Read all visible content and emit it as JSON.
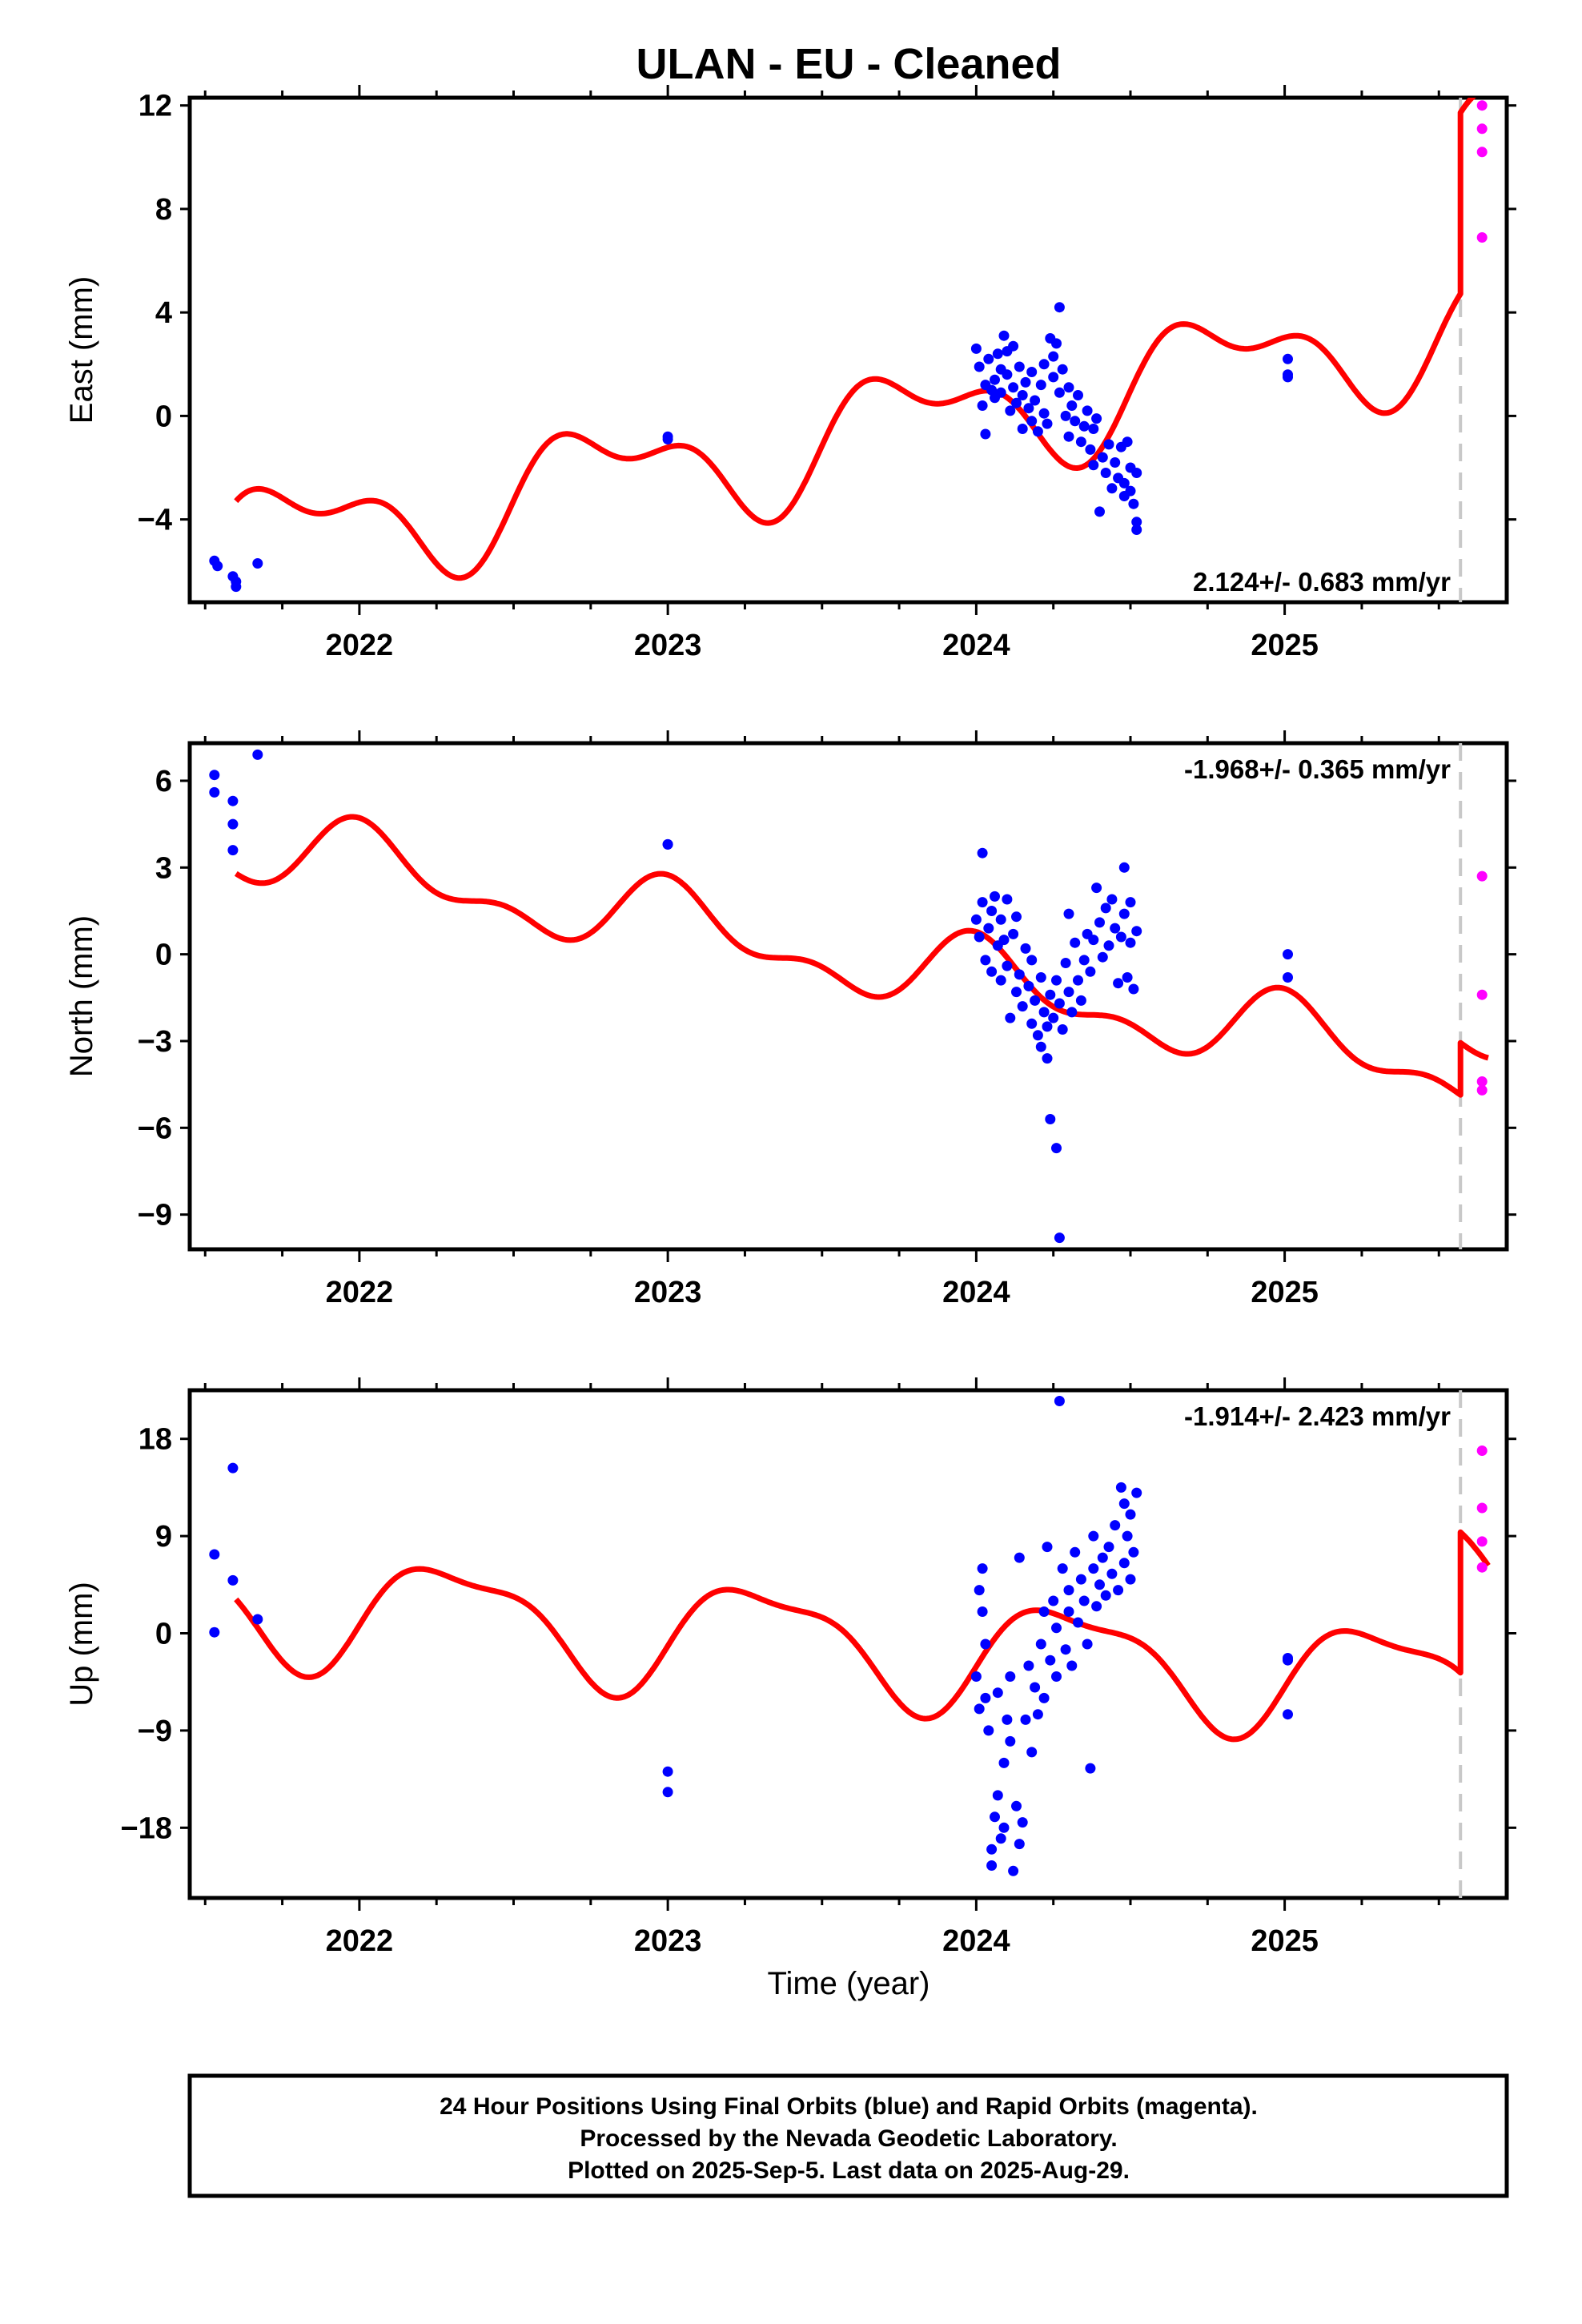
{
  "chart_data": {
    "type": "scatter",
    "title": "ULAN  - EU - Cleaned",
    "xlabel": "Time (year)",
    "x_ticks": [
      2022,
      2023,
      2024,
      2025
    ],
    "x_tick_labels": [
      "2022",
      "2023",
      "2024",
      "2025"
    ],
    "xlim": [
      2021.45,
      2025.72
    ],
    "last_data_marker_x": 2025.57,
    "series_colors": {
      "final_orbits": "#0000ff",
      "rapid_orbits": "#ff00ff",
      "model_fit": "#ff0000",
      "last_data_line": "#c8c8c8"
    },
    "grid": false,
    "panels": [
      {
        "id": "east",
        "ylabel": "East (mm)",
        "ylim": [
          -7.2,
          12.3
        ],
        "y_ticks": [
          12,
          8,
          4,
          0,
          -4
        ],
        "y_tick_labels": [
          "12",
          "8",
          "4",
          "0",
          "−4"
        ],
        "rate_text": "2.124+/- 0.683 mm/yr",
        "rate_position": "bottom-right",
        "model": {
          "trend_offset": -5.2,
          "rate": 2.124,
          "annual_cos": 0.5,
          "annual_sin": -1.8,
          "semi_cos": 0.3,
          "semi_sin": 1.0,
          "step_at": 2025.57,
          "step_size": 7.0
        },
        "final_orbits": [
          [
            2021.53,
            -5.6
          ],
          [
            2021.54,
            -5.8
          ],
          [
            2021.59,
            -6.2
          ],
          [
            2021.6,
            -6.6
          ],
          [
            2021.6,
            -6.4
          ],
          [
            2021.67,
            -5.7
          ],
          [
            2023.0,
            -0.9
          ],
          [
            2023.0,
            -0.8
          ],
          [
            2024.0,
            2.6
          ],
          [
            2024.01,
            1.9
          ],
          [
            2024.02,
            0.4
          ],
          [
            2024.03,
            -0.7
          ],
          [
            2024.03,
            1.2
          ],
          [
            2024.04,
            2.2
          ],
          [
            2024.05,
            1.0
          ],
          [
            2024.06,
            1.4
          ],
          [
            2024.06,
            0.7
          ],
          [
            2024.07,
            2.4
          ],
          [
            2024.08,
            1.8
          ],
          [
            2024.08,
            0.9
          ],
          [
            2024.09,
            3.1
          ],
          [
            2024.1,
            2.5
          ],
          [
            2024.1,
            1.6
          ],
          [
            2024.11,
            0.2
          ],
          [
            2024.12,
            2.7
          ],
          [
            2024.12,
            1.1
          ],
          [
            2024.13,
            0.5
          ],
          [
            2024.14,
            1.9
          ],
          [
            2024.15,
            0.8
          ],
          [
            2024.15,
            -0.5
          ],
          [
            2024.16,
            1.3
          ],
          [
            2024.17,
            0.3
          ],
          [
            2024.18,
            -0.2
          ],
          [
            2024.18,
            1.7
          ],
          [
            2024.19,
            0.6
          ],
          [
            2024.2,
            -0.6
          ],
          [
            2024.21,
            1.2
          ],
          [
            2024.22,
            0.1
          ],
          [
            2024.22,
            2.0
          ],
          [
            2024.23,
            -0.3
          ],
          [
            2024.24,
            3.0
          ],
          [
            2024.25,
            2.3
          ],
          [
            2024.25,
            1.5
          ],
          [
            2024.26,
            2.8
          ],
          [
            2024.27,
            4.2
          ],
          [
            2024.27,
            0.9
          ],
          [
            2024.28,
            1.8
          ],
          [
            2024.29,
            0.0
          ],
          [
            2024.3,
            -0.8
          ],
          [
            2024.3,
            1.1
          ],
          [
            2024.31,
            0.4
          ],
          [
            2024.32,
            -0.2
          ],
          [
            2024.33,
            0.8
          ],
          [
            2024.34,
            -1.0
          ],
          [
            2024.35,
            -0.4
          ],
          [
            2024.36,
            0.2
          ],
          [
            2024.37,
            -1.3
          ],
          [
            2024.38,
            -0.5
          ],
          [
            2024.38,
            -1.9
          ],
          [
            2024.39,
            -0.1
          ],
          [
            2024.4,
            -3.7
          ],
          [
            2024.41,
            -1.6
          ],
          [
            2024.42,
            -2.2
          ],
          [
            2024.43,
            -1.1
          ],
          [
            2024.44,
            -2.8
          ],
          [
            2024.45,
            -1.8
          ],
          [
            2024.46,
            -2.4
          ],
          [
            2024.47,
            -1.2
          ],
          [
            2024.48,
            -2.6
          ],
          [
            2024.48,
            -3.1
          ],
          [
            2024.49,
            -1.0
          ],
          [
            2024.5,
            -2.0
          ],
          [
            2024.5,
            -2.9
          ],
          [
            2024.51,
            -3.4
          ],
          [
            2024.52,
            -2.2
          ],
          [
            2024.52,
            -4.1
          ],
          [
            2024.52,
            -4.4
          ],
          [
            2025.01,
            2.2
          ],
          [
            2025.01,
            1.5
          ],
          [
            2025.01,
            1.6
          ]
        ],
        "rapid_orbits": [
          [
            2025.64,
            12.0
          ],
          [
            2025.64,
            11.1
          ],
          [
            2025.64,
            10.2
          ],
          [
            2025.64,
            6.9
          ]
        ]
      },
      {
        "id": "north",
        "ylabel": "North (mm)",
        "ylim": [
          -10.2,
          7.3
        ],
        "y_ticks": [
          6,
          3,
          0,
          -3,
          -6,
          -9
        ],
        "y_tick_labels": [
          "6",
          "3",
          "0",
          "−3",
          "−6",
          "−9"
        ],
        "rate_text": "-1.968+/- 0.365 mm/yr",
        "rate_position": "top-right",
        "model": {
          "trend_offset": 4.0,
          "rate": -1.968,
          "annual_cos": 1.1,
          "annual_sin": 0.2,
          "semi_cos": 0.6,
          "semi_sin": -0.2,
          "step_at": 2025.57,
          "step_size": 1.8
        },
        "final_orbits": [
          [
            2021.53,
            6.2
          ],
          [
            2021.53,
            5.6
          ],
          [
            2021.59,
            5.3
          ],
          [
            2021.59,
            4.5
          ],
          [
            2021.59,
            3.6
          ],
          [
            2021.67,
            6.9
          ],
          [
            2023.0,
            3.8
          ],
          [
            2023.0,
            3.8
          ],
          [
            2024.0,
            1.2
          ],
          [
            2024.01,
            0.6
          ],
          [
            2024.02,
            3.5
          ],
          [
            2024.02,
            1.8
          ],
          [
            2024.03,
            -0.2
          ],
          [
            2024.04,
            0.9
          ],
          [
            2024.05,
            1.5
          ],
          [
            2024.05,
            -0.6
          ],
          [
            2024.06,
            2.0
          ],
          [
            2024.07,
            0.3
          ],
          [
            2024.08,
            1.2
          ],
          [
            2024.08,
            -0.9
          ],
          [
            2024.09,
            0.5
          ],
          [
            2024.1,
            1.9
          ],
          [
            2024.1,
            -0.4
          ],
          [
            2024.11,
            -2.2
          ],
          [
            2024.12,
            0.7
          ],
          [
            2024.13,
            -1.3
          ],
          [
            2024.13,
            1.3
          ],
          [
            2024.14,
            -0.7
          ],
          [
            2024.15,
            -1.8
          ],
          [
            2024.16,
            0.2
          ],
          [
            2024.17,
            -1.1
          ],
          [
            2024.18,
            -2.4
          ],
          [
            2024.18,
            -0.2
          ],
          [
            2024.19,
            -1.6
          ],
          [
            2024.2,
            -2.8
          ],
          [
            2024.21,
            -0.8
          ],
          [
            2024.21,
            -3.2
          ],
          [
            2024.22,
            -2.0
          ],
          [
            2024.23,
            -3.6
          ],
          [
            2024.23,
            -2.5
          ],
          [
            2024.24,
            -5.7
          ],
          [
            2024.24,
            -1.4
          ],
          [
            2024.25,
            -2.2
          ],
          [
            2024.26,
            -0.9
          ],
          [
            2024.26,
            -6.7
          ],
          [
            2024.27,
            -9.8
          ],
          [
            2024.27,
            -1.7
          ],
          [
            2024.28,
            -2.6
          ],
          [
            2024.29,
            -0.3
          ],
          [
            2024.3,
            1.4
          ],
          [
            2024.3,
            -1.3
          ],
          [
            2024.31,
            -2.0
          ],
          [
            2024.32,
            0.4
          ],
          [
            2024.33,
            -0.9
          ],
          [
            2024.34,
            -1.6
          ],
          [
            2024.35,
            -0.2
          ],
          [
            2024.36,
            0.7
          ],
          [
            2024.37,
            -0.6
          ],
          [
            2024.38,
            0.5
          ],
          [
            2024.39,
            2.3
          ],
          [
            2024.4,
            1.1
          ],
          [
            2024.41,
            -0.1
          ],
          [
            2024.42,
            1.6
          ],
          [
            2024.43,
            0.3
          ],
          [
            2024.44,
            1.9
          ],
          [
            2024.45,
            0.9
          ],
          [
            2024.46,
            -1.0
          ],
          [
            2024.47,
            0.6
          ],
          [
            2024.48,
            3.0
          ],
          [
            2024.48,
            1.4
          ],
          [
            2024.49,
            -0.8
          ],
          [
            2024.5,
            0.4
          ],
          [
            2024.5,
            1.8
          ],
          [
            2024.51,
            -1.2
          ],
          [
            2024.52,
            0.8
          ],
          [
            2025.01,
            0.0
          ],
          [
            2025.01,
            -0.8
          ]
        ],
        "rapid_orbits": [
          [
            2025.64,
            2.7
          ],
          [
            2025.64,
            -1.4
          ],
          [
            2025.64,
            -4.4
          ],
          [
            2025.64,
            -4.7
          ]
        ]
      },
      {
        "id": "up",
        "ylabel": "Up (mm)",
        "ylim": [
          -24.5,
          22.5
        ],
        "y_ticks": [
          18,
          9,
          0,
          -9,
          -18
        ],
        "y_tick_labels": [
          "18",
          "9",
          "0",
          "−9",
          "−18"
        ],
        "rate_text": "-1.914+/- 2.423 mm/yr",
        "rate_position": "top-right",
        "model": {
          "trend_offset": 3.0,
          "rate": -1.914,
          "annual_cos": -1.8,
          "annual_sin": 4.6,
          "semi_cos": 0.5,
          "semi_sin": 1.5,
          "step_at": 2025.57,
          "step_size": 13.0
        },
        "final_orbits": [
          [
            2021.53,
            7.3
          ],
          [
            2021.53,
            0.1
          ],
          [
            2021.59,
            15.3
          ],
          [
            2021.59,
            4.9
          ],
          [
            2021.67,
            1.3
          ],
          [
            2023.0,
            -12.8
          ],
          [
            2023.0,
            -14.7
          ],
          [
            2024.0,
            -4.0
          ],
          [
            2024.01,
            4.0
          ],
          [
            2024.01,
            -7.0
          ],
          [
            2024.02,
            2.0
          ],
          [
            2024.02,
            6.0
          ],
          [
            2024.03,
            -1.0
          ],
          [
            2024.03,
            -6.0
          ],
          [
            2024.04,
            -9.0
          ],
          [
            2024.05,
            -21.5
          ],
          [
            2024.05,
            -20.0
          ],
          [
            2024.06,
            -17.0
          ],
          [
            2024.07,
            -15.0
          ],
          [
            2024.07,
            -5.5
          ],
          [
            2024.08,
            -19.0
          ],
          [
            2024.09,
            -18.0
          ],
          [
            2024.09,
            -12.0
          ],
          [
            2024.1,
            -8.0
          ],
          [
            2024.11,
            -10.0
          ],
          [
            2024.11,
            -4.0
          ],
          [
            2024.12,
            -22.0
          ],
          [
            2024.13,
            -16.0
          ],
          [
            2024.14,
            -19.5
          ],
          [
            2024.14,
            7.0
          ],
          [
            2024.15,
            -17.5
          ],
          [
            2024.16,
            -8.0
          ],
          [
            2024.17,
            -3.0
          ],
          [
            2024.18,
            -11.0
          ],
          [
            2024.19,
            -5.0
          ],
          [
            2024.2,
            -7.5
          ],
          [
            2024.21,
            -1.0
          ],
          [
            2024.22,
            2.0
          ],
          [
            2024.22,
            -6.0
          ],
          [
            2024.23,
            8.0
          ],
          [
            2024.24,
            -2.5
          ],
          [
            2024.25,
            3.0
          ],
          [
            2024.26,
            0.5
          ],
          [
            2024.26,
            -4.0
          ],
          [
            2024.27,
            21.5
          ],
          [
            2024.28,
            6.0
          ],
          [
            2024.29,
            -1.5
          ],
          [
            2024.3,
            4.0
          ],
          [
            2024.3,
            2.0
          ],
          [
            2024.31,
            -3.0
          ],
          [
            2024.32,
            7.5
          ],
          [
            2024.33,
            1.0
          ],
          [
            2024.34,
            5.0
          ],
          [
            2024.35,
            3.0
          ],
          [
            2024.36,
            -1.0
          ],
          [
            2024.37,
            -12.5
          ],
          [
            2024.38,
            6.0
          ],
          [
            2024.38,
            9.0
          ],
          [
            2024.39,
            2.5
          ],
          [
            2024.4,
            4.5
          ],
          [
            2024.41,
            7.0
          ],
          [
            2024.42,
            3.5
          ],
          [
            2024.43,
            8.0
          ],
          [
            2024.44,
            5.5
          ],
          [
            2024.45,
            10.0
          ],
          [
            2024.46,
            4.0
          ],
          [
            2024.47,
            13.5
          ],
          [
            2024.48,
            6.5
          ],
          [
            2024.48,
            12.0
          ],
          [
            2024.49,
            9.0
          ],
          [
            2024.5,
            5.0
          ],
          [
            2024.5,
            11.0
          ],
          [
            2024.51,
            7.5
          ],
          [
            2024.52,
            13.0
          ],
          [
            2025.01,
            -2.3
          ],
          [
            2025.01,
            -2.5
          ],
          [
            2025.01,
            -7.5
          ]
        ],
        "rapid_orbits": [
          [
            2025.64,
            16.9
          ],
          [
            2025.64,
            11.6
          ],
          [
            2025.64,
            8.5
          ],
          [
            2025.64,
            6.1
          ]
        ]
      }
    ]
  },
  "footer": {
    "line1": "24 Hour Positions Using Final Orbits (blue) and Rapid Orbits (magenta).",
    "line2": "Processed by the Nevada Geodetic Laboratory.",
    "line3": "Plotted on 2025-Sep-5. Last data on 2025-Aug-29."
  }
}
